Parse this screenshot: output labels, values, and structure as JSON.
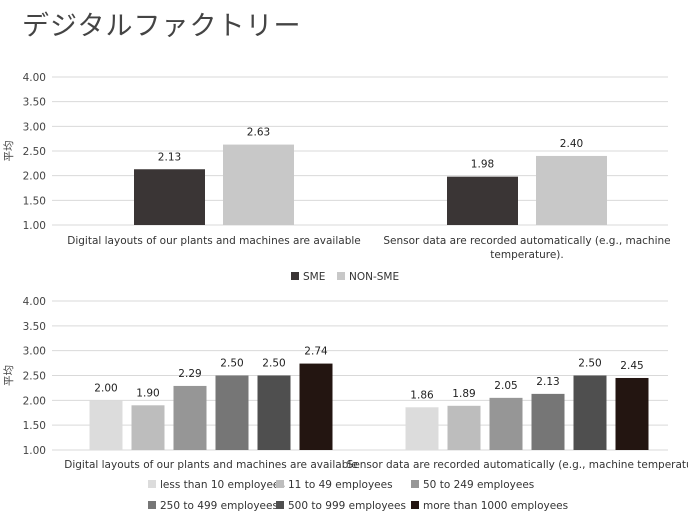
{
  "page": {
    "title": "デジタルファクトリー"
  },
  "chart_data": [
    {
      "type": "bar",
      "ylabel": "平均",
      "ylim": [
        1.0,
        4.0
      ],
      "yticks": [
        "1.00",
        "1.50",
        "2.00",
        "2.50",
        "3.00",
        "3.50",
        "4.00"
      ],
      "grid": true,
      "legend_position": "bottom",
      "categories": [
        [
          "Digital layouts of our plants and machines are available"
        ],
        [
          "Sensor data are recorded automatically (e.g., machine",
          "temperature)."
        ]
      ],
      "series": [
        {
          "name": "SME",
          "color": "#3a3535",
          "values": [
            2.13,
            1.98
          ],
          "labels": [
            "2.13",
            "1.98"
          ]
        },
        {
          "name": "NON-SME",
          "color": "#c8c8c8",
          "values": [
            2.63,
            2.4
          ],
          "labels": [
            "2.63",
            "2.40"
          ]
        }
      ]
    },
    {
      "type": "bar",
      "ylabel": "平均",
      "ylim": [
        1.0,
        4.0
      ],
      "yticks": [
        "1.00",
        "1.50",
        "2.00",
        "2.50",
        "3.00",
        "3.50",
        "4.00"
      ],
      "grid": true,
      "legend_position": "bottom",
      "categories": [
        [
          "Digital layouts of our plants and machines are available"
        ],
        [
          "Sensor data are recorded automatically (e.g., machine temperature)"
        ]
      ],
      "series": [
        {
          "name": "less than 10 employees",
          "color": "#dcdcdc",
          "values": [
            2.0,
            1.86
          ],
          "labels": [
            "2.00",
            "1.86"
          ]
        },
        {
          "name": "11 to 49 employees",
          "color": "#bdbdbd",
          "values": [
            1.9,
            1.89
          ],
          "labels": [
            "1.90",
            "1.89"
          ]
        },
        {
          "name": "50 to 249 employees",
          "color": "#969696",
          "values": [
            2.29,
            2.05
          ],
          "labels": [
            "2.29",
            "2.05"
          ]
        },
        {
          "name": "250 to 499 employees",
          "color": "#767676",
          "values": [
            2.5,
            2.13
          ],
          "labels": [
            "2.50",
            "2.13"
          ]
        },
        {
          "name": "500 to 999 employees",
          "color": "#4f4f4f",
          "values": [
            2.5,
            2.5
          ],
          "labels": [
            "2.50",
            "2.50"
          ]
        },
        {
          "name": "more than 1000 employees",
          "color": "#231511",
          "values": [
            2.74,
            2.45
          ],
          "labels": [
            "2.74",
            "2.45"
          ]
        }
      ]
    }
  ]
}
